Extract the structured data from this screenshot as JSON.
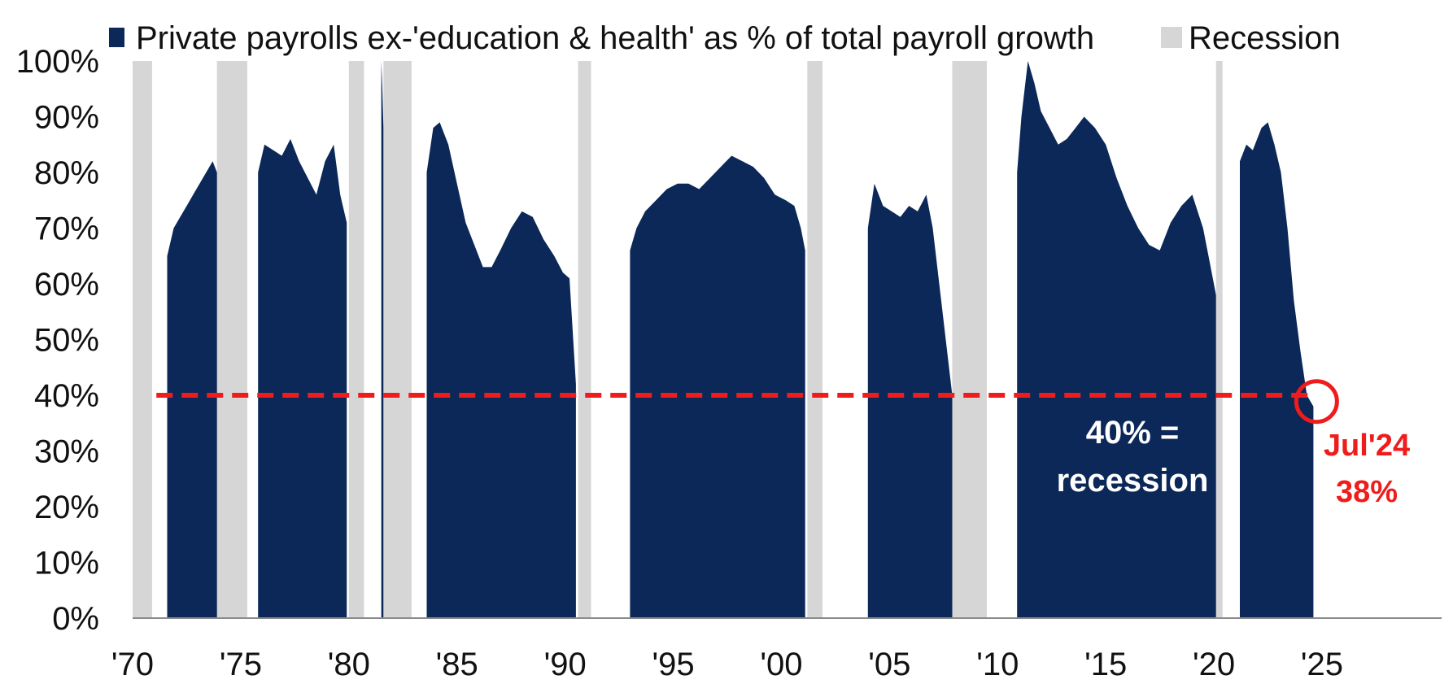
{
  "chart_data": {
    "type": "area",
    "title": "",
    "xlabel": "",
    "ylabel": "",
    "legend": {
      "position": "top",
      "items": [
        {
          "label": "Private payrolls ex-'education & health' as % of total payroll growth",
          "color": "#0b2858"
        },
        {
          "label": "Recession",
          "color": "#d6d6d6"
        }
      ]
    },
    "xlim": [
      1970,
      2030
    ],
    "ylim": [
      0,
      100
    ],
    "x_tick_labels": [
      "'70",
      "'75",
      "'80",
      "'85",
      "'90",
      "'95",
      "'00",
      "'05",
      "'10",
      "'15",
      "'20",
      "'25"
    ],
    "x_ticks": [
      1970,
      1975,
      1980,
      1985,
      1990,
      1995,
      2000,
      2005,
      2010,
      2015,
      2020,
      2025
    ],
    "y_tick_labels": [
      "0%",
      "10%",
      "20%",
      "30%",
      "40%",
      "50%",
      "60%",
      "70%",
      "80%",
      "90%",
      "100%"
    ],
    "y_ticks": [
      0,
      10,
      20,
      30,
      40,
      50,
      60,
      70,
      80,
      90,
      100
    ],
    "recessions": [
      {
        "start": 1970.0,
        "end": 1970.9
      },
      {
        "start": 1973.9,
        "end": 1975.3
      },
      {
        "start": 1980.0,
        "end": 1980.7
      },
      {
        "start": 1981.6,
        "end": 1982.9
      },
      {
        "start": 1990.6,
        "end": 1991.2
      },
      {
        "start": 2001.2,
        "end": 2001.9
      },
      {
        "start": 2007.9,
        "end": 2009.5
      },
      {
        "start": 2020.1,
        "end": 2020.4
      }
    ],
    "series": [
      {
        "name": "Private payrolls ex-'education & health' as % of total payroll growth",
        "color": "#0b2858",
        "segments": [
          {
            "x": [
              1971.6,
              1971.9,
              1972.2,
              1972.5,
              1972.8,
              1973.1,
              1973.4,
              1973.7,
              1973.9
            ],
            "y": [
              65,
              70,
              72,
              74,
              76,
              78,
              80,
              82,
              80
            ]
          },
          {
            "x": [
              1975.8,
              1976.1,
              1976.5,
              1976.9,
              1977.3,
              1977.7,
              1978.1,
              1978.5,
              1978.9,
              1979.3,
              1979.6,
              1979.9
            ],
            "y": [
              80,
              85,
              84,
              83,
              86,
              82,
              79,
              76,
              82,
              85,
              76,
              71
            ]
          },
          {
            "x": [
              1981.5,
              1981.55,
              1981.6
            ],
            "y": [
              100,
              95,
              88
            ]
          },
          {
            "x": [
              1983.6,
              1983.9,
              1984.2,
              1984.6,
              1985.0,
              1985.4,
              1985.8,
              1986.2,
              1986.6,
              1987.0,
              1987.5,
              1988.0,
              1988.5,
              1989.0,
              1989.5,
              1989.9,
              1990.2,
              1990.5
            ],
            "y": [
              80,
              88,
              89,
              85,
              78,
              71,
              67,
              63,
              63,
              66,
              70,
              73,
              72,
              68,
              65,
              62,
              61,
              42
            ]
          },
          {
            "x": [
              1993.0,
              1993.3,
              1993.7,
              1994.2,
              1994.7,
              1995.2,
              1995.7,
              1996.2,
              1996.7,
              1997.2,
              1997.7,
              1998.2,
              1998.7,
              1999.2,
              1999.7,
              2000.2,
              2000.6,
              2000.9,
              2001.1
            ],
            "y": [
              66,
              70,
              73,
              75,
              77,
              78,
              78,
              77,
              79,
              81,
              83,
              82,
              81,
              79,
              76,
              75,
              74,
              70,
              66
            ]
          },
          {
            "x": [
              2004.0,
              2004.3,
              2004.7,
              2005.1,
              2005.5,
              2005.9,
              2006.3,
              2006.7,
              2007.0,
              2007.3,
              2007.6,
              2007.9
            ],
            "y": [
              70,
              78,
              74,
              73,
              72,
              74,
              73,
              76,
              70,
              60,
              50,
              40
            ]
          },
          {
            "x": [
              2010.9,
              2011.1,
              2011.4,
              2011.7,
              2012.0,
              2012.4,
              2012.8,
              2013.2,
              2013.6,
              2014.0,
              2014.5,
              2015.0,
              2015.5,
              2016.0,
              2016.5,
              2017.0,
              2017.5,
              2018.0,
              2018.5,
              2019.0,
              2019.5,
              2019.8,
              2020.1
            ],
            "y": [
              80,
              90,
              100,
              96,
              91,
              88,
              85,
              86,
              88,
              90,
              88,
              85,
              79,
              74,
              70,
              67,
              66,
              71,
              74,
              76,
              70,
              64,
              58
            ]
          },
          {
            "x": [
              2021.2,
              2021.5,
              2021.8,
              2022.2,
              2022.5,
              2022.8,
              2023.1,
              2023.4,
              2023.7,
              2024.0,
              2024.3,
              2024.6
            ],
            "y": [
              82,
              85,
              84,
              88,
              89,
              85,
              80,
              70,
              57,
              48,
              40,
              38
            ]
          }
        ]
      }
    ],
    "threshold": {
      "y": 40,
      "x_start": 1971.1,
      "x_end": 2024.6,
      "color": "#f01c1c",
      "style": "dashed"
    },
    "annotations": [
      {
        "id": "threshold-label",
        "lines": [
          "40% =",
          "recession"
        ],
        "color": "#ffffff"
      },
      {
        "id": "latest-label",
        "lines": [
          "Jul'24",
          "38%"
        ],
        "color": "#f01c1c",
        "point": {
          "x": 2024.6,
          "y": 38
        }
      }
    ]
  }
}
